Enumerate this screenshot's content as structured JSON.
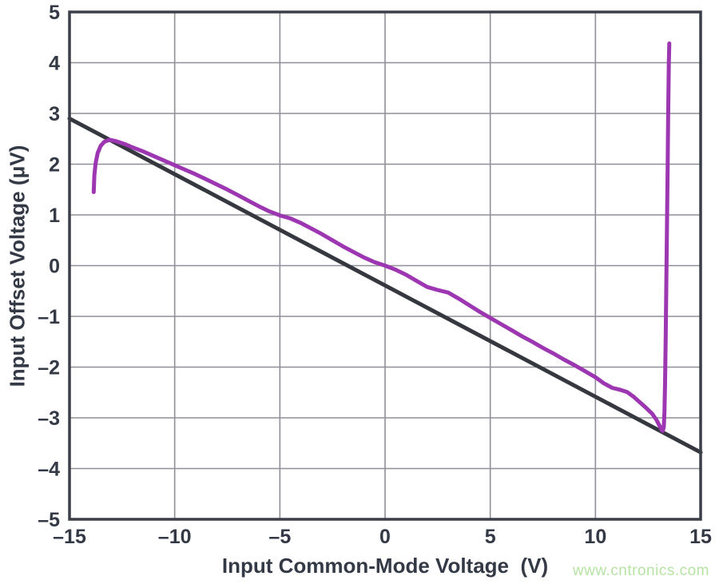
{
  "watermark": {
    "text": "www.cntronics.com",
    "color": "#b7e3a5"
  },
  "chart_data": {
    "type": "line",
    "title": "",
    "xlabel": "Input Common-Mode Voltage  (V)",
    "ylabel": "Input Offset Voltage (μV)",
    "xlim": [
      -15,
      15
    ],
    "ylim": [
      -5,
      5
    ],
    "grid": true,
    "legend_position": "none",
    "xticks": [
      -15,
      -10,
      -5,
      0,
      5,
      10,
      15
    ],
    "xtick_labels": [
      "–15",
      "–10",
      "–5",
      "0",
      "5",
      "10",
      "15"
    ],
    "yticks": [
      5,
      4,
      3,
      2,
      1,
      0,
      -1,
      -2,
      -3,
      -4,
      -5
    ],
    "ytick_labels": [
      "5",
      "4",
      "3",
      "2",
      "1",
      "0",
      "–1",
      "–2",
      "–3",
      "–4",
      "–5"
    ],
    "colors": {
      "frame": "#3a3f49",
      "grid": "#8f8f97",
      "text": "#333a46"
    },
    "series": [
      {
        "name": "linear-reference-line",
        "color": "#35383f",
        "stroke_width": 5,
        "points": [
          [
            -15,
            2.9
          ],
          [
            15,
            -3.68
          ]
        ]
      },
      {
        "name": "measured-input-offset-curve",
        "color": "#9c36b1",
        "stroke_width": 5,
        "points": [
          [
            -13.85,
            1.45
          ],
          [
            -13.82,
            1.78
          ],
          [
            -13.76,
            2.02
          ],
          [
            -13.66,
            2.22
          ],
          [
            -13.52,
            2.36
          ],
          [
            -13.35,
            2.44
          ],
          [
            -13.1,
            2.48
          ],
          [
            -12.85,
            2.46
          ],
          [
            -12.4,
            2.4
          ],
          [
            -12.0,
            2.33
          ],
          [
            -11.5,
            2.25
          ],
          [
            -11.0,
            2.16
          ],
          [
            -10.5,
            2.07
          ],
          [
            -10.0,
            1.98
          ],
          [
            -9.5,
            1.89
          ],
          [
            -9.0,
            1.8
          ],
          [
            -8.5,
            1.7
          ],
          [
            -8.0,
            1.6
          ],
          [
            -7.5,
            1.5
          ],
          [
            -7.0,
            1.39
          ],
          [
            -6.5,
            1.28
          ],
          [
            -6.0,
            1.17
          ],
          [
            -5.5,
            1.07
          ],
          [
            -5.0,
            0.99
          ],
          [
            -4.5,
            0.93
          ],
          [
            -4.0,
            0.84
          ],
          [
            -3.5,
            0.73
          ],
          [
            -3.0,
            0.62
          ],
          [
            -2.5,
            0.5
          ],
          [
            -2.0,
            0.38
          ],
          [
            -1.5,
            0.27
          ],
          [
            -1.0,
            0.16
          ],
          [
            -0.5,
            0.07
          ],
          [
            0.0,
            0.0
          ],
          [
            0.5,
            -0.08
          ],
          [
            1.0,
            -0.18
          ],
          [
            1.5,
            -0.3
          ],
          [
            2.0,
            -0.42
          ],
          [
            2.5,
            -0.48
          ],
          [
            3.0,
            -0.53
          ],
          [
            3.5,
            -0.65
          ],
          [
            4.0,
            -0.78
          ],
          [
            4.5,
            -0.91
          ],
          [
            5.0,
            -1.03
          ],
          [
            5.5,
            -1.15
          ],
          [
            6.0,
            -1.27
          ],
          [
            6.5,
            -1.39
          ],
          [
            7.0,
            -1.5
          ],
          [
            7.5,
            -1.62
          ],
          [
            8.0,
            -1.73
          ],
          [
            8.5,
            -1.85
          ],
          [
            9.0,
            -1.96
          ],
          [
            9.5,
            -2.08
          ],
          [
            10.0,
            -2.2
          ],
          [
            10.4,
            -2.32
          ],
          [
            10.8,
            -2.41
          ],
          [
            11.2,
            -2.45
          ],
          [
            11.5,
            -2.49
          ],
          [
            11.8,
            -2.58
          ],
          [
            12.1,
            -2.69
          ],
          [
            12.4,
            -2.8
          ],
          [
            12.7,
            -2.92
          ],
          [
            12.9,
            -3.04
          ],
          [
            13.05,
            -3.16
          ],
          [
            13.15,
            -3.24
          ],
          [
            13.2,
            -3.26
          ],
          [
            13.25,
            -3.18
          ],
          [
            13.28,
            -2.9
          ],
          [
            13.31,
            -2.3
          ],
          [
            13.34,
            -1.4
          ],
          [
            13.37,
            -0.3
          ],
          [
            13.4,
            0.8
          ],
          [
            13.43,
            1.9
          ],
          [
            13.46,
            3.0
          ],
          [
            13.49,
            4.0
          ],
          [
            13.51,
            4.38
          ]
        ]
      }
    ]
  }
}
